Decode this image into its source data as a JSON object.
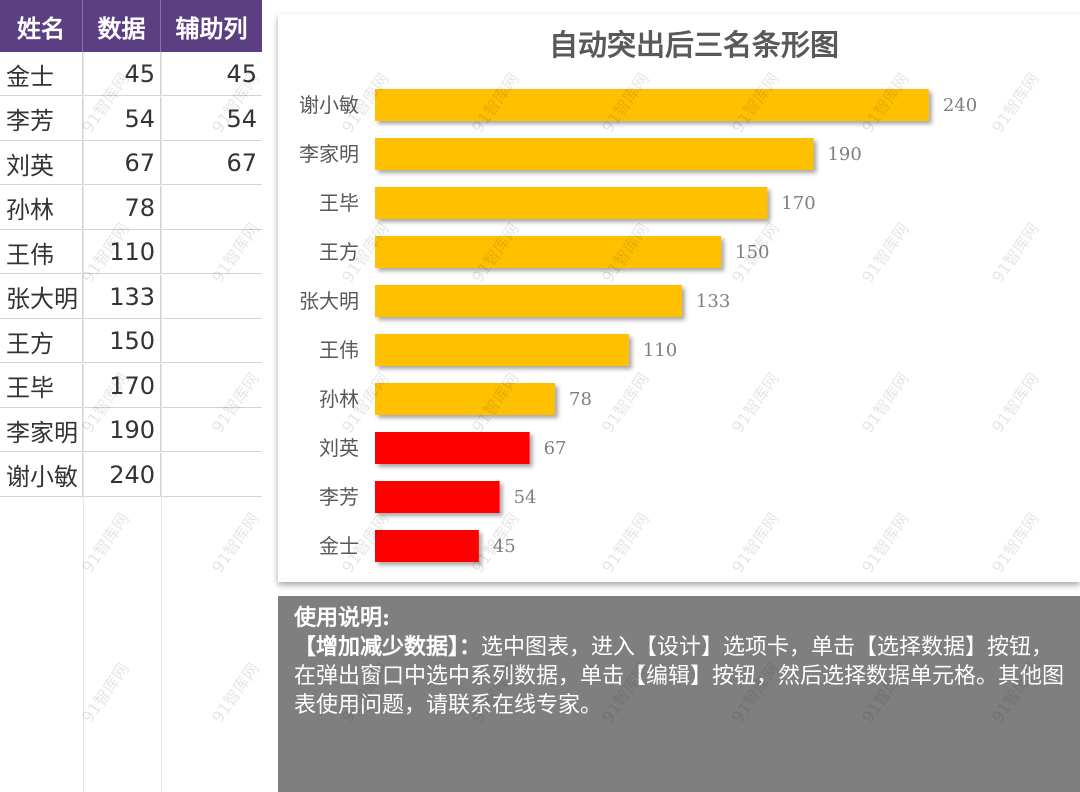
{
  "table": {
    "headers": [
      "姓名",
      "数据",
      "辅助列"
    ],
    "rows": [
      {
        "name": "金士",
        "value": "45",
        "helper": "45"
      },
      {
        "name": "李芳",
        "value": "54",
        "helper": "54"
      },
      {
        "name": "刘英",
        "value": "67",
        "helper": "67"
      },
      {
        "name": "孙林",
        "value": "78",
        "helper": ""
      },
      {
        "name": "王伟",
        "value": "110",
        "helper": ""
      },
      {
        "name": "张大明",
        "value": "133",
        "helper": ""
      },
      {
        "name": "王方",
        "value": "150",
        "helper": ""
      },
      {
        "name": "王毕",
        "value": "170",
        "helper": ""
      },
      {
        "name": "李家明",
        "value": "190",
        "helper": ""
      },
      {
        "name": "谢小敏",
        "value": "240",
        "helper": ""
      }
    ]
  },
  "chart_data": {
    "type": "bar",
    "orientation": "horizontal",
    "title": "自动突出后三名条形图",
    "categories": [
      "谢小敏",
      "李家明",
      "王毕",
      "王方",
      "张大明",
      "王伟",
      "孙林",
      "刘英",
      "李芳",
      "金士"
    ],
    "values": [
      240,
      190,
      170,
      150,
      133,
      110,
      78,
      67,
      54,
      45
    ],
    "highlight_bottom_n": 3,
    "colors": {
      "normal": "#ffc000",
      "highlight": "#ff0000"
    },
    "xlim": [
      0,
      260
    ],
    "grid": false,
    "legend": "none"
  },
  "notes": {
    "title": "使用说明:",
    "bold_part": "【增加减少数据】：",
    "body": "选中图表，进入【设计】选项卡，单击【选择数据】按钮，在弹出窗口中选中系列数据，单击【编辑】按钮，然后选择数据单元格。其他图表使用问题，请联系在线专家。"
  },
  "watermark": "91智库网",
  "colors": {
    "header_bg": "#5b3f82",
    "notes_bg": "#7f7f7f"
  }
}
